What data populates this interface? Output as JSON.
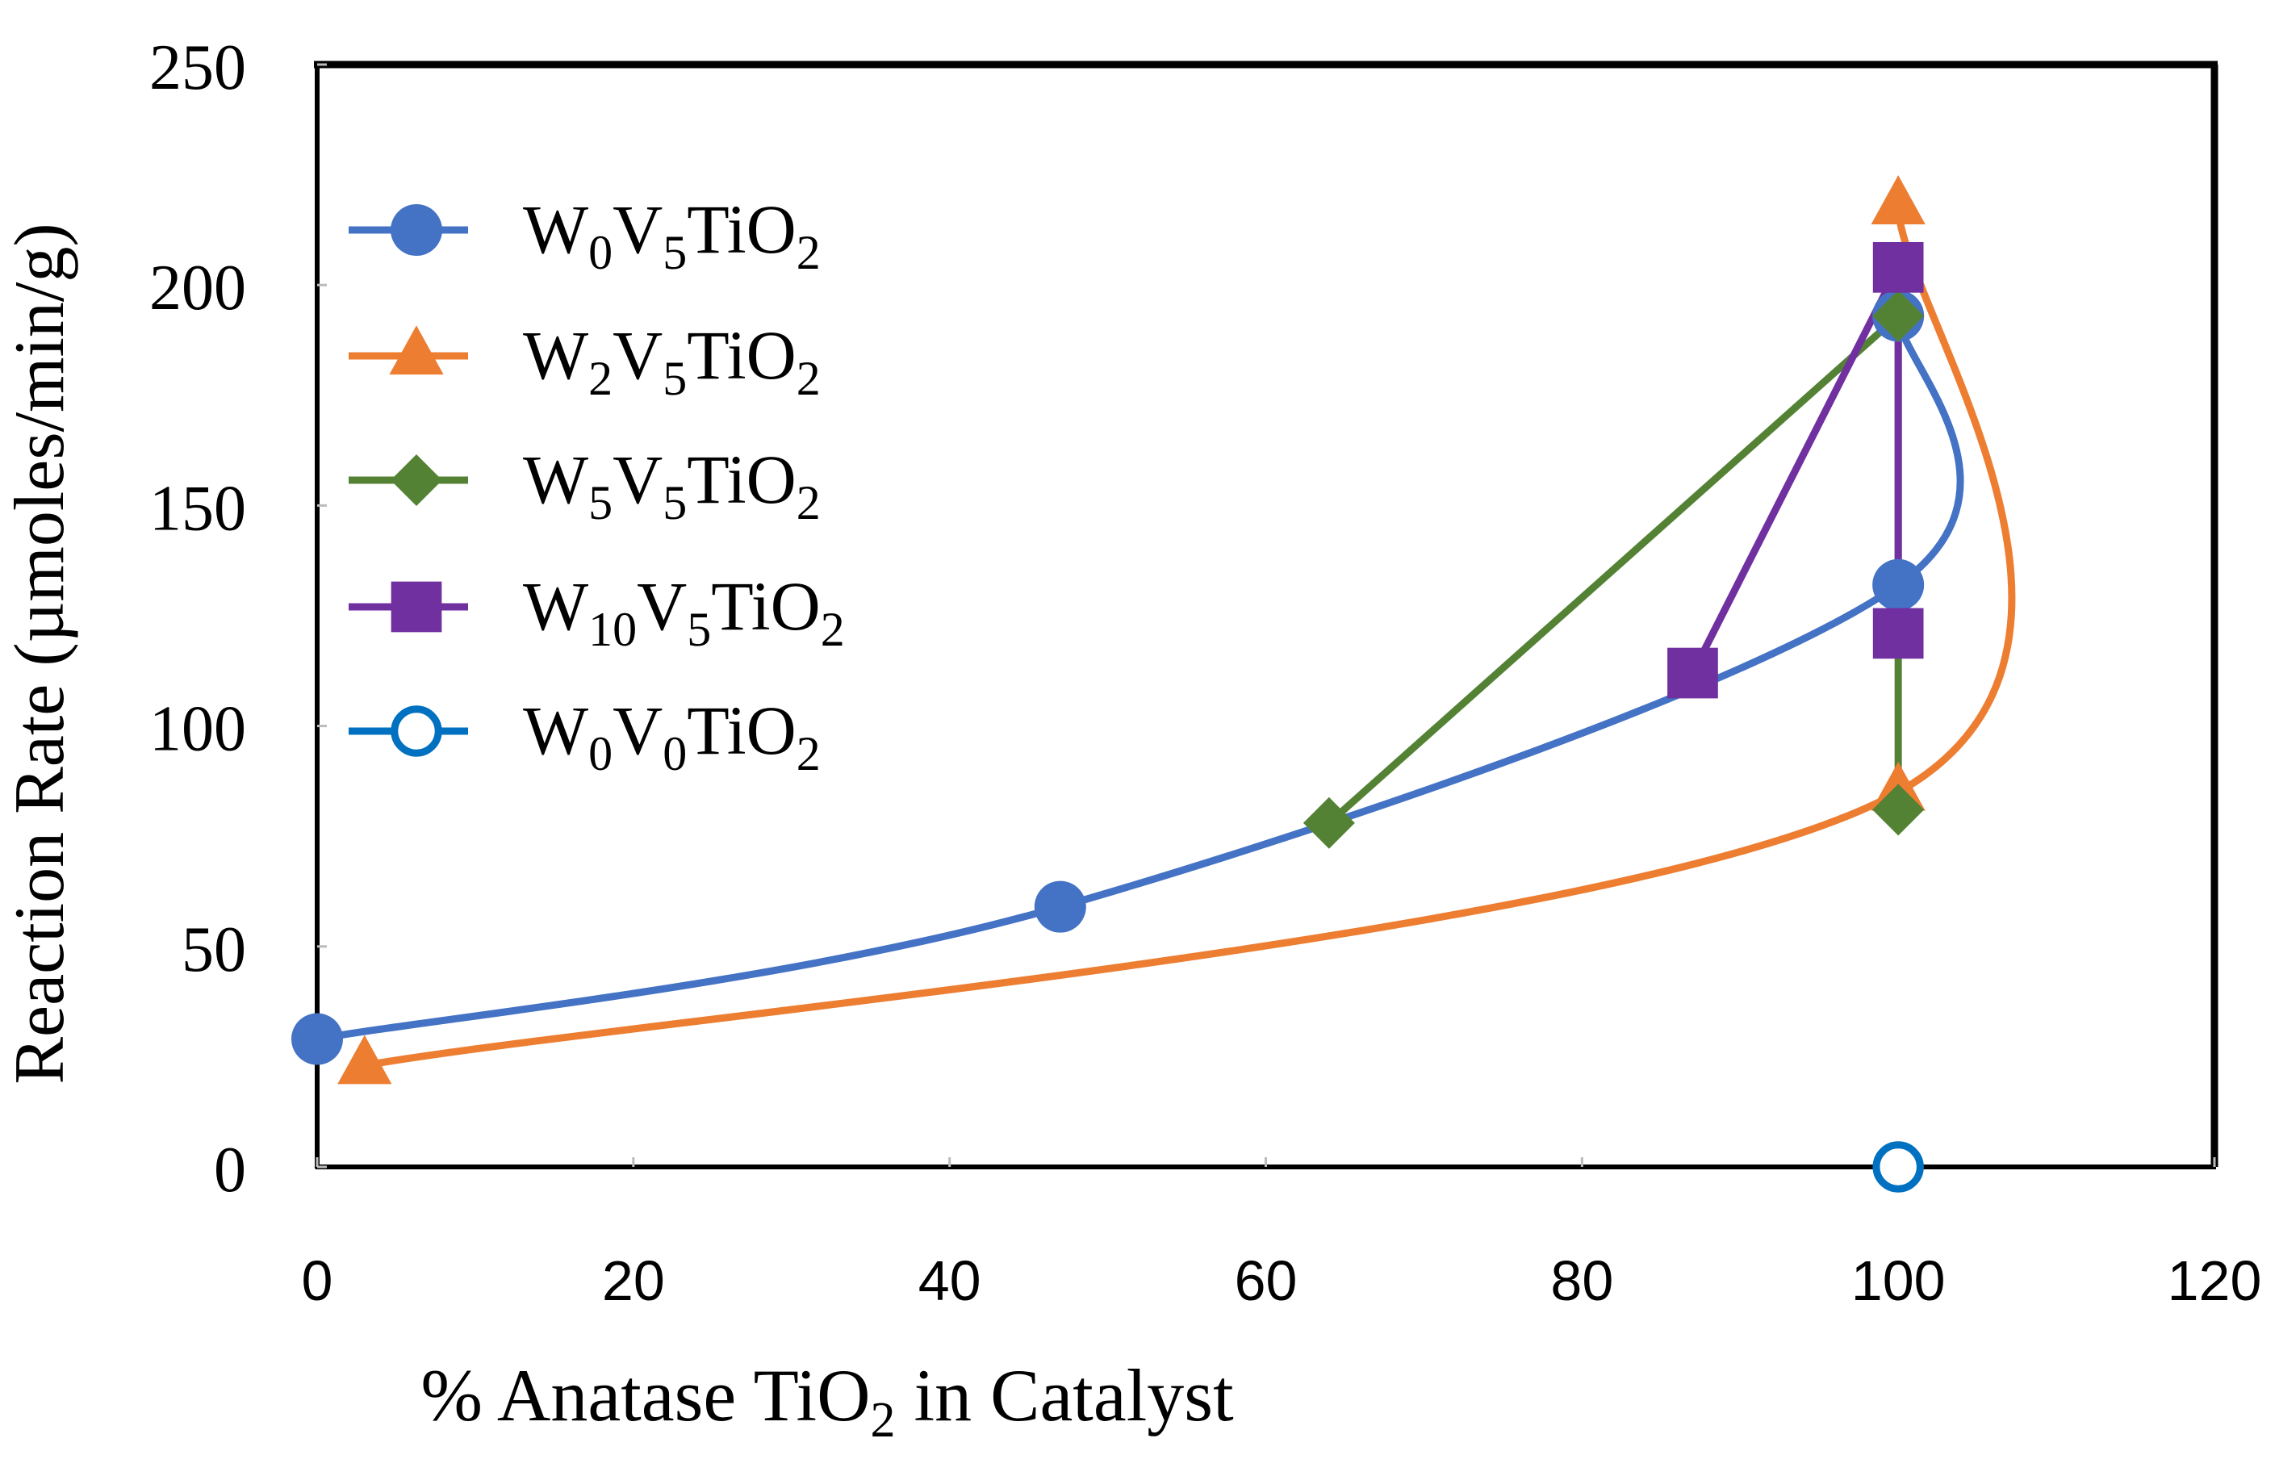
{
  "chart_data": {
    "type": "scatter",
    "xlabel": {
      "before": "% Anatase TiO",
      "sub": "2",
      "after": " in Catalyst"
    },
    "ylabel": "Reaction Rate (µmoles/min/g)",
    "xlim": [
      0,
      120
    ],
    "ylim": [
      0,
      250
    ],
    "xticks": [
      0,
      20,
      40,
      60,
      80,
      100,
      120
    ],
    "yticks": [
      0,
      50,
      100,
      150,
      200,
      250
    ],
    "grid": false,
    "legend_position": "top-left",
    "series": [
      {
        "name": "W0V5TiO2",
        "label_parts": [
          [
            "W",
            ""
          ],
          [
            "0",
            "sub"
          ],
          [
            "V",
            ""
          ],
          [
            "5",
            "sub"
          ],
          [
            "TiO",
            ""
          ],
          [
            "2",
            "sub"
          ]
        ],
        "color": "#4472C4",
        "marker": "circle",
        "smooth": true,
        "points": [
          [
            0,
            29
          ],
          [
            47,
            59
          ],
          [
            100,
            132
          ],
          [
            100,
            193
          ]
        ]
      },
      {
        "name": "W2V5TiO2",
        "label_parts": [
          [
            "W",
            ""
          ],
          [
            "2",
            "sub"
          ],
          [
            "V",
            ""
          ],
          [
            "5",
            "sub"
          ],
          [
            "TiO",
            ""
          ],
          [
            "2",
            "sub"
          ]
        ],
        "color": "#ED7D31",
        "marker": "triangle",
        "smooth": true,
        "points": [
          [
            3,
            23
          ],
          [
            100,
            85
          ],
          [
            100,
            218
          ]
        ]
      },
      {
        "name": "W5V5TiO2",
        "label_parts": [
          [
            "W",
            ""
          ],
          [
            "5",
            "sub"
          ],
          [
            "V",
            ""
          ],
          [
            "5",
            "sub"
          ],
          [
            "TiO",
            ""
          ],
          [
            "2",
            "sub"
          ]
        ],
        "color": "#548235",
        "marker": "diamond",
        "smooth": false,
        "points": [
          [
            64,
            78
          ],
          [
            100,
            193
          ],
          [
            100,
            81
          ]
        ]
      },
      {
        "name": "W10V5TiO2",
        "label_parts": [
          [
            "W",
            ""
          ],
          [
            "10",
            "sub"
          ],
          [
            "V",
            ""
          ],
          [
            "5",
            "sub"
          ],
          [
            "TiO",
            ""
          ],
          [
            "2",
            "sub"
          ]
        ],
        "color": "#7030A0",
        "marker": "square",
        "smooth": false,
        "points": [
          [
            87,
            112
          ],
          [
            100,
            204
          ],
          [
            100,
            121
          ]
        ]
      },
      {
        "name": "W0V0TiO2",
        "label_parts": [
          [
            "W",
            ""
          ],
          [
            "0",
            "sub"
          ],
          [
            "V",
            ""
          ],
          [
            "0",
            "sub"
          ],
          [
            "TiO",
            ""
          ],
          [
            "2",
            "sub"
          ]
        ],
        "color": "#0070C0",
        "marker": "open-circle",
        "smooth": false,
        "points": [
          [
            100,
            0
          ]
        ]
      }
    ]
  }
}
